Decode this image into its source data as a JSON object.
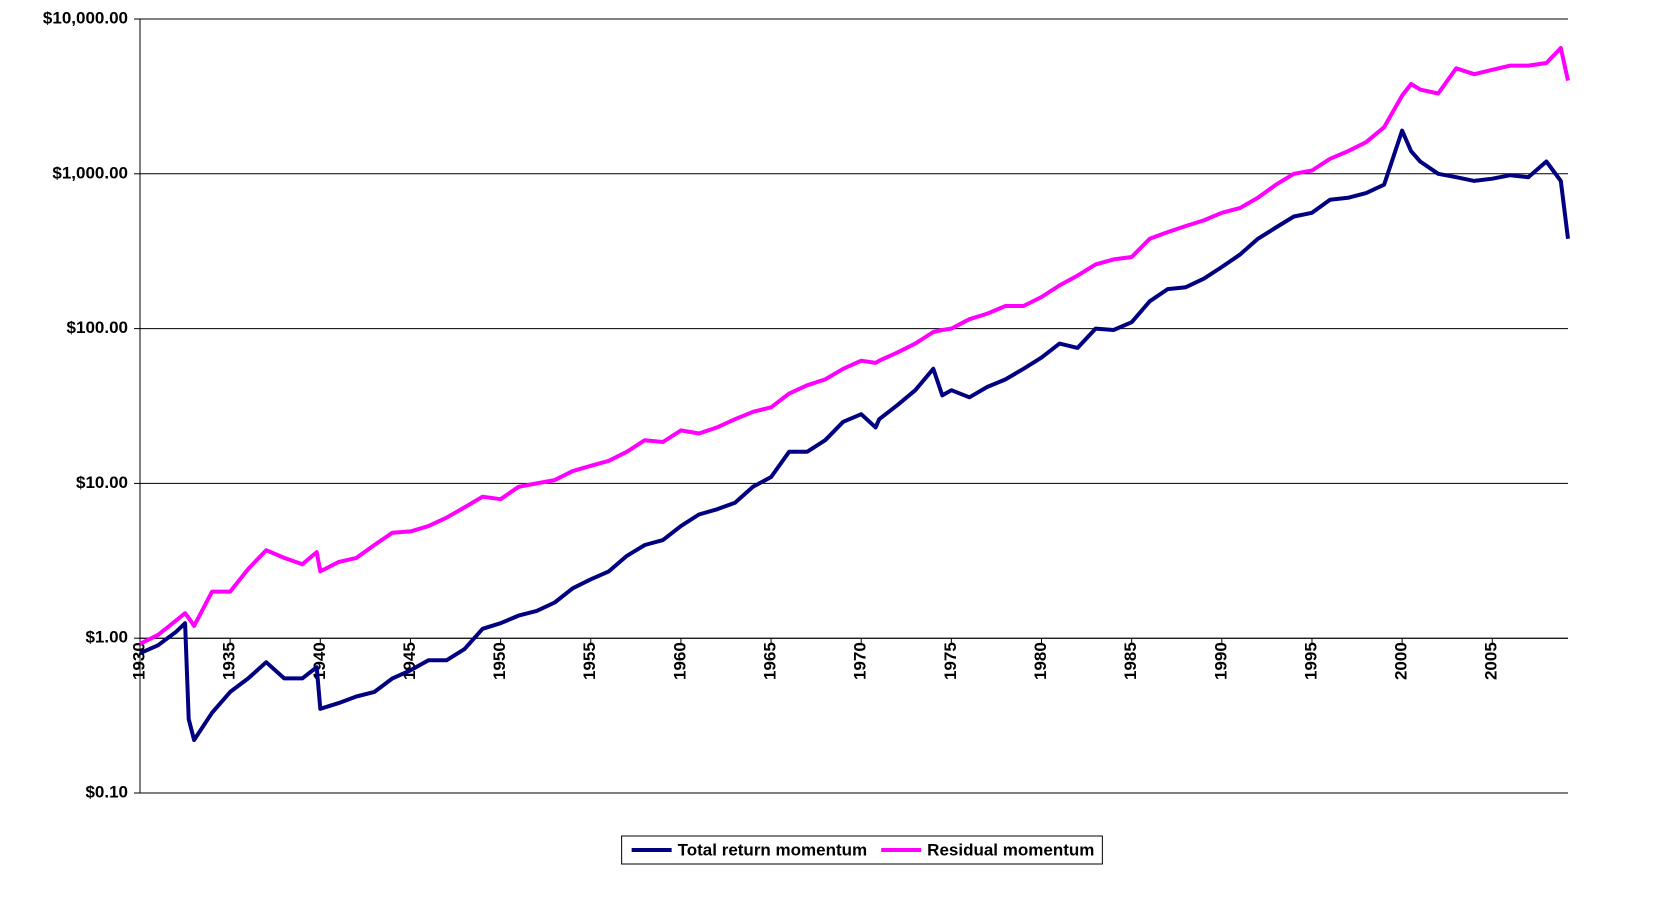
{
  "chart_data": {
    "type": "line",
    "x": [
      1930,
      1931,
      1932,
      1932.5,
      1932.7,
      1933,
      1934,
      1935,
      1936,
      1937,
      1938,
      1939,
      1939.8,
      1940,
      1941,
      1942,
      1943,
      1944,
      1945,
      1946,
      1947,
      1948,
      1949,
      1950,
      1951,
      1952,
      1953,
      1954,
      1955,
      1956,
      1957,
      1958,
      1959,
      1960,
      1961,
      1962,
      1963,
      1964,
      1965,
      1966,
      1967,
      1968,
      1969,
      1970,
      1970.8,
      1971,
      1972,
      1973,
      1974,
      1974.5,
      1975,
      1976,
      1977,
      1978,
      1979,
      1980,
      1981,
      1982,
      1983,
      1984,
      1985,
      1986,
      1987,
      1988,
      1989,
      1990,
      1991,
      1992,
      1993,
      1994,
      1995,
      1996,
      1997,
      1998,
      1999,
      2000,
      2000.5,
      2001,
      2002,
      2003,
      2004,
      2005,
      2006,
      2007,
      2008,
      2008.8,
      2009.2
    ],
    "series": [
      {
        "name": "Total return momentum",
        "color": "#000080",
        "values": [
          0.8,
          0.9,
          1.1,
          1.25,
          0.3,
          0.22,
          0.33,
          0.45,
          0.55,
          0.7,
          0.55,
          0.55,
          0.65,
          0.35,
          0.38,
          0.42,
          0.45,
          0.55,
          0.62,
          0.72,
          0.72,
          0.85,
          1.15,
          1.25,
          1.4,
          1.5,
          1.7,
          2.1,
          2.4,
          2.7,
          3.4,
          4.0,
          4.3,
          5.3,
          6.3,
          6.8,
          7.5,
          9.5,
          11,
          16,
          16,
          19,
          25,
          28,
          23,
          26,
          32,
          40,
          55,
          37,
          40,
          36,
          42,
          47,
          55,
          65,
          80,
          75,
          100,
          98,
          110,
          150,
          180,
          185,
          210,
          250,
          300,
          380,
          450,
          530,
          560,
          680,
          700,
          750,
          850,
          1900,
          1400,
          1200,
          1000,
          950,
          900,
          930,
          980,
          950,
          1200,
          900,
          380
        ]
      },
      {
        "name": "Residual momentum",
        "color": "#ff00ff",
        "values": [
          0.92,
          1.05,
          1.3,
          1.45,
          1.35,
          1.2,
          2.0,
          2.0,
          2.8,
          3.7,
          3.3,
          3.0,
          3.6,
          2.7,
          3.1,
          3.3,
          4.0,
          4.8,
          4.9,
          5.3,
          6.0,
          7.0,
          8.2,
          7.9,
          9.5,
          10,
          10.5,
          12,
          13,
          14,
          16,
          19,
          18.5,
          22,
          21,
          23,
          26,
          29,
          31,
          38,
          43,
          47,
          55,
          62,
          60,
          62,
          70,
          80,
          95,
          98,
          100,
          115,
          125,
          140,
          140,
          160,
          190,
          220,
          260,
          280,
          290,
          380,
          420,
          460,
          500,
          560,
          600,
          700,
          850,
          1000,
          1050,
          1250,
          1400,
          1600,
          2000,
          3200,
          3800,
          3500,
          3300,
          4800,
          4400,
          4700,
          5000,
          5000,
          5200,
          6500,
          4000
        ]
      }
    ],
    "xlim": [
      1930,
      2009.2
    ],
    "xticks": [
      1930,
      1935,
      1940,
      1945,
      1950,
      1955,
      1960,
      1965,
      1970,
      1975,
      1980,
      1985,
      1990,
      1995,
      2000,
      2005
    ],
    "ylim": [
      0.1,
      10000
    ],
    "yticks": [
      {
        "value": 0.1,
        "label": "$0.10"
      },
      {
        "value": 1,
        "label": "$1.00"
      },
      {
        "value": 10,
        "label": "$10.00"
      },
      {
        "value": 100,
        "label": "$100.00"
      },
      {
        "value": 1000,
        "label": "$1,000.00"
      },
      {
        "value": 10000,
        "label": "$10,000.00"
      }
    ],
    "ylog": true,
    "xaxis_at": 1,
    "grid": true,
    "legend": "bottom"
  }
}
